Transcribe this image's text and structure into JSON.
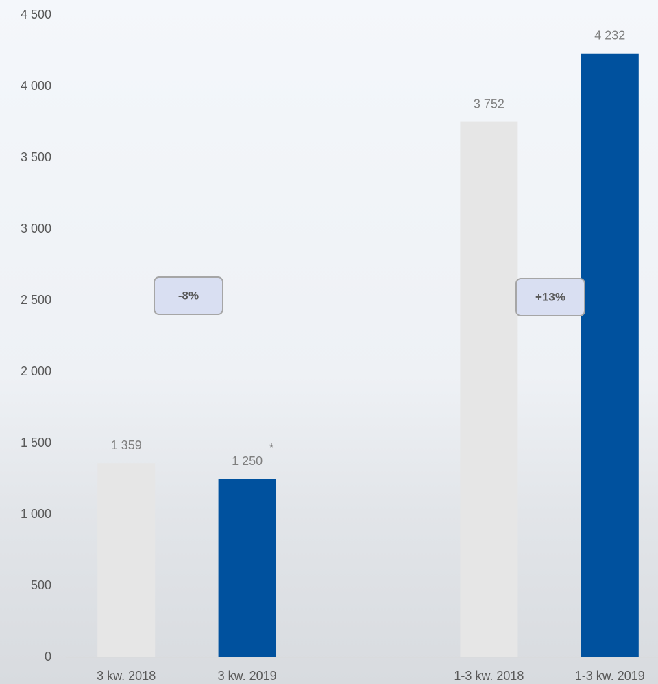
{
  "chart_data": {
    "type": "bar",
    "categories": [
      "3 kw. 2018",
      "3 kw. 2019",
      null,
      "1-3 kw. 2018",
      "1-3 kw. 2019"
    ],
    "values": [
      1359,
      1250,
      null,
      3752,
      4232
    ],
    "value_labels": [
      "1 359",
      "1 250",
      null,
      "3 752",
      "4 232"
    ],
    "colors": [
      "#e6e6e6",
      "#00519e",
      null,
      "#e6e6e6",
      "#00519e"
    ],
    "ylim": [
      0,
      4500
    ],
    "yticks": [
      0,
      500,
      {
        "value": 1000,
        "label": "1 000"
      },
      {
        "value": 1500,
        "label": "1 500"
      },
      {
        "value": 2000,
        "label": "2 000"
      },
      {
        "value": 2500,
        "label": "2 500"
      },
      {
        "value": 3000,
        "label": "3 000"
      },
      {
        "value": 3500,
        "label": "3 500"
      },
      {
        "value": 4000,
        "label": "4 000"
      },
      {
        "value": 4500,
        "label": "4 500"
      }
    ],
    "annotations": [
      "-8%",
      "+13%",
      "*"
    ],
    "grid": false
  }
}
